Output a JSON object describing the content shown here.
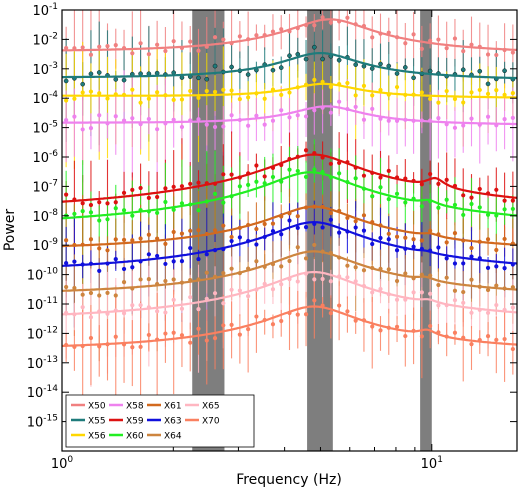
{
  "chart_data": {
    "type": "line",
    "xlabel": "Frequency (Hz)",
    "ylabel": "Power",
    "xscale": "log",
    "yscale": "log",
    "xlim": [
      1,
      17
    ],
    "ylim": [
      1e-16,
      0.1
    ],
    "x_tick_labels": [
      {
        "base": "10",
        "exp": "0",
        "value": 1
      },
      {
        "base": "10",
        "exp": "1",
        "value": 10
      }
    ],
    "y_tick_labels": [
      {
        "base": "10",
        "exp": "-1",
        "value": 0.1
      },
      {
        "base": "10",
        "exp": "-2",
        "value": 0.01
      },
      {
        "base": "10",
        "exp": "-3",
        "value": 0.001
      },
      {
        "base": "10",
        "exp": "-4",
        "value": 0.0001
      },
      {
        "base": "10",
        "exp": "-5",
        "value": 1e-05
      },
      {
        "base": "10",
        "exp": "-6",
        "value": 1e-06
      },
      {
        "base": "10",
        "exp": "-7",
        "value": 1e-07
      },
      {
        "base": "10",
        "exp": "-8",
        "value": 1e-08
      },
      {
        "base": "10",
        "exp": "-9",
        "value": 1e-09
      },
      {
        "base": "10",
        "exp": "-10",
        "value": 1e-10
      },
      {
        "base": "10",
        "exp": "-11",
        "value": 1e-11
      },
      {
        "base": "10",
        "exp": "-12",
        "value": 1e-12
      },
      {
        "base": "10",
        "exp": "-13",
        "value": 1e-13
      },
      {
        "base": "10",
        "exp": "-14",
        "value": 1e-14
      },
      {
        "base": "10",
        "exp": "-15",
        "value": 1e-15
      }
    ],
    "shaded_bands": [
      {
        "x_start": 2.25,
        "x_end": 2.75,
        "color": "#707070"
      },
      {
        "x_start": 4.6,
        "x_end": 5.4,
        "color": "#707070"
      },
      {
        "x_start": 9.3,
        "x_end": 10.0,
        "color": "#707070"
      }
    ],
    "legend": {
      "placement": "bottom-left",
      "columns": 5
    },
    "series": [
      {
        "name": "X50",
        "color": "#f08080",
        "level": 0.003,
        "qpo_freq": 5.3,
        "qpo_peak": 0.045,
        "harmonic_freq": null,
        "harmonic_peak": null
      },
      {
        "name": "X55",
        "color": "#1e7b7b",
        "level": 0.0004,
        "qpo_freq": 5.0,
        "qpo_peak": 0.003,
        "harmonic_freq": null,
        "harmonic_peak": null
      },
      {
        "name": "X56",
        "color": "#ffd700",
        "level": 0.0001,
        "qpo_freq": 5.1,
        "qpo_peak": 0.0002,
        "harmonic_freq": null,
        "harmonic_peak": null
      },
      {
        "name": "X58",
        "color": "#ee82ee",
        "level": 1.2e-05,
        "qpo_freq": 5.2,
        "qpo_peak": 4e-05,
        "harmonic_freq": null,
        "harmonic_peak": null
      },
      {
        "name": "X59",
        "color": "#dd1111",
        "level": 8e-09,
        "qpo_freq": 4.8,
        "qpo_peak": 1.2e-06,
        "harmonic_freq": 10.2,
        "harmonic_peak": 1e-07
      },
      {
        "name": "X60",
        "color": "#22ee22",
        "level": 2.5e-09,
        "qpo_freq": 4.7,
        "qpo_peak": 3e-07,
        "harmonic_freq": 9.8,
        "harmonic_peak": 1e-08
      },
      {
        "name": "X61",
        "color": "#d2691e",
        "level": 5e-10,
        "qpo_freq": 4.8,
        "qpo_peak": 2e-08,
        "harmonic_freq": 9.9,
        "harmonic_peak": 5e-10
      },
      {
        "name": "X63",
        "color": "#1010dd",
        "level": 8e-11,
        "qpo_freq": 4.8,
        "qpo_peak": 6e-09,
        "harmonic_freq": 9.6,
        "harmonic_peak": 8e-11
      },
      {
        "name": "X64",
        "color": "#cd853f",
        "level": 1.5e-11,
        "qpo_freq": 4.8,
        "qpo_peak": 6e-10,
        "harmonic_freq": 9.6,
        "harmonic_peak": 2e-11
      },
      {
        "name": "X65",
        "color": "#ffb6c1",
        "level": 2e-12,
        "qpo_freq": 4.8,
        "qpo_peak": 1.2e-10,
        "harmonic_freq": 9.8,
        "harmonic_peak": 3e-12
      },
      {
        "name": "X70",
        "color": "#fa8060",
        "level": 2e-13,
        "qpo_freq": 4.8,
        "qpo_peak": 8e-12,
        "harmonic_freq": 9.7,
        "harmonic_peak": 5e-13
      }
    ]
  }
}
